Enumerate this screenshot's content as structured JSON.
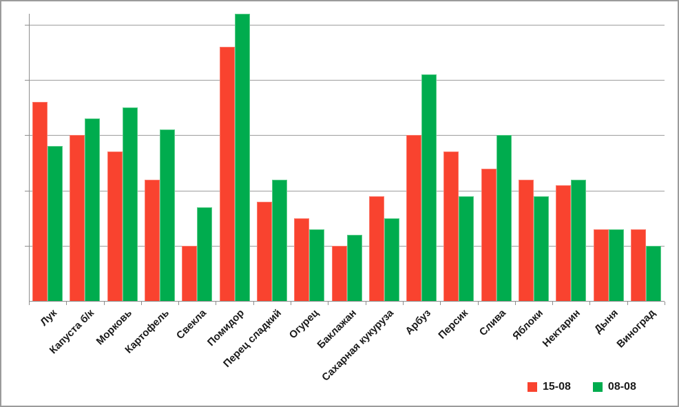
{
  "chart_data": {
    "type": "bar",
    "title": "",
    "xlabel": "",
    "ylabel": "",
    "categories": [
      "Лук",
      "Капуста б/к",
      "Морковь",
      "Картофель",
      "Свекла",
      "Помидор",
      "Перец сладкий",
      "Огурец",
      "Баклажан",
      "Сахарная кукуруза",
      "Арбуз",
      "Персик",
      "Слива",
      "Яблоки",
      "Нектарин",
      "Дыня",
      "Виноград"
    ],
    "series": [
      {
        "name": "15-08",
        "color": "#F9432F",
        "border_color": "#FB7A6C",
        "values": [
          36,
          30,
          27,
          22,
          10,
          46,
          18,
          15,
          10,
          19,
          30,
          27,
          24,
          22,
          21,
          13,
          13
        ]
      },
      {
        "name": "08-08",
        "color": "#00AC4E",
        "border_color": "#5ACD8B",
        "values": [
          28,
          33,
          35,
          31,
          17,
          52,
          22,
          13,
          12,
          15,
          41,
          19,
          30,
          19,
          22,
          13,
          10
        ]
      }
    ],
    "ylim": [
      0,
      52
    ],
    "y_gridline_step": 10,
    "y_tick_labels_visible": false,
    "grid": true,
    "legend_position": "bottom-right",
    "colors": {
      "axis": "#8C8C8C",
      "gridline": "#9C9C9C",
      "label_text": "#1A1A1A",
      "frame_border": "#9B9B9B",
      "background": "#FFFFFF"
    }
  }
}
